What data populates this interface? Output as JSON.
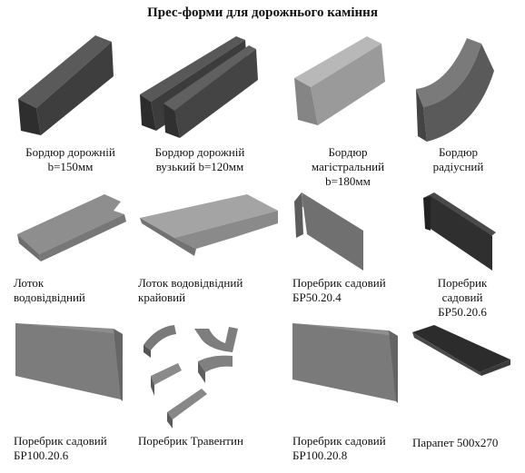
{
  "page": {
    "title": "Прес-форми для дорожнього каміння"
  },
  "items": [
    {
      "icon": "road-curb-block-icon",
      "lines": [
        "Бордюр дорожній",
        "b=150мм"
      ]
    },
    {
      "icon": "narrow-road-curb-pair-icon",
      "lines": [
        "Бордюр дорожній",
        "вузький b=120мм"
      ]
    },
    {
      "icon": "highway-curb-block-icon",
      "lines": [
        "Бордюр",
        "магістральний",
        "b=180мм"
      ]
    },
    {
      "icon": "radius-curb-block-icon",
      "lines": [
        "Бордюр",
        "радіусний"
      ]
    },
    {
      "icon": "drain-tray-icon",
      "lines": [
        "Лоток",
        "водовідвідний"
      ]
    },
    {
      "icon": "edge-drain-tray-icon",
      "lines": [
        "Лоток водовідвідний",
        "крайовий"
      ]
    },
    {
      "icon": "garden-curb-br50-20-4-icon",
      "lines": [
        "Поребрик садовий",
        "БР50.20.4"
      ]
    },
    {
      "icon": "garden-curb-br50-20-6-icon",
      "lines": [
        "Поребрик",
        "садовий",
        "БР50.20.6"
      ]
    },
    {
      "icon": "garden-curb-br100-20-6-icon",
      "lines": [
        "Поребрик садовий",
        "БР100.20.6"
      ]
    },
    {
      "icon": "travertine-curb-set-icon",
      "lines": [
        "Поребрик Травентин"
      ]
    },
    {
      "icon": "garden-curb-br100-20-8-icon",
      "lines": [
        "Поребрик садовий",
        "БР100.20.8"
      ]
    },
    {
      "icon": "parapet-slab-icon",
      "lines": [
        "Парапет 500х270"
      ]
    }
  ]
}
